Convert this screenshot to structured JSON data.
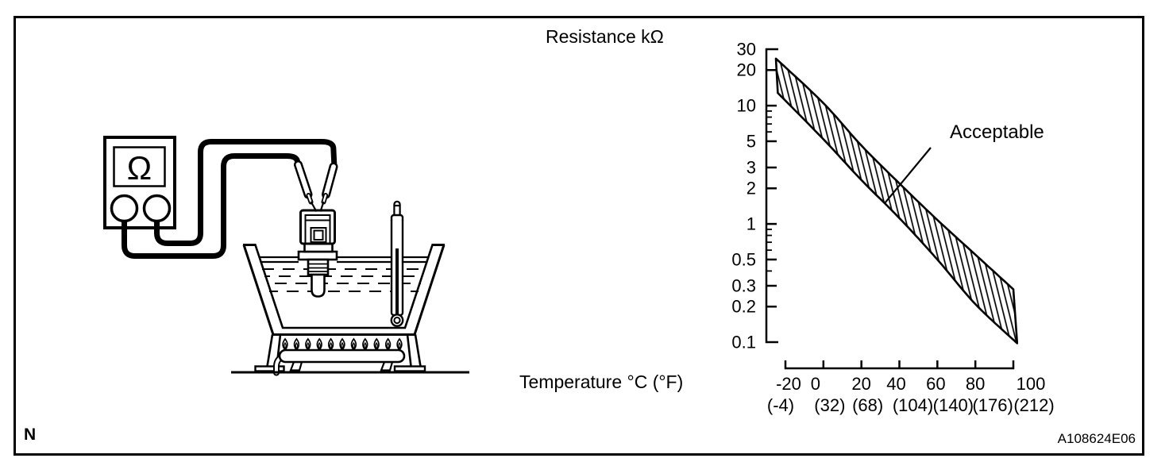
{
  "figure": {
    "frame_label": "N",
    "figure_code": "A108624E06"
  },
  "diagram": {
    "meter_symbol": "Ω"
  },
  "chart_data": {
    "type": "area",
    "subtype": "acceptable-band",
    "title": "Resistance kΩ",
    "xlabel": "Temperature °C (°F)",
    "ylabel": "Resistance kΩ",
    "x_scale": "linear",
    "y_scale": "log",
    "xlim": [
      -20,
      100
    ],
    "ylim": [
      0.1,
      30
    ],
    "grid": false,
    "legend": false,
    "band_label": "Acceptable",
    "x_ticks_celsius": [
      -20,
      0,
      20,
      40,
      60,
      80,
      100
    ],
    "x_tick_labels_celsius": [
      "-20",
      "0",
      "20",
      "40",
      "60",
      "80",
      "100"
    ],
    "x_tick_labels_fahrenheit": [
      "(-4)",
      "(32)",
      "(68)",
      "(104)",
      "(140)",
      "(176)",
      "(212)"
    ],
    "y_tick_labels": [
      "30",
      "20",
      "10",
      "5",
      "3",
      "2",
      "1",
      "0.5",
      "0.3",
      "0.2",
      "0.1"
    ],
    "y_minor_ticks": [
      9,
      8,
      7,
      6,
      0.9,
      0.8,
      0.7,
      0.6,
      0.4
    ],
    "series": [
      {
        "name": "acceptable_upper_kohm",
        "x": [
          -25,
          0,
          20,
          40,
          60,
          80,
          100
        ],
        "y": [
          25,
          10.5,
          4.6,
          2.2,
          1.08,
          0.55,
          0.28
        ]
      },
      {
        "name": "acceptable_lower_kohm",
        "x": [
          -24,
          0,
          20,
          40,
          60,
          80,
          102
        ],
        "y": [
          12.8,
          5.2,
          2.35,
          1.12,
          0.5,
          0.21,
          0.098
        ]
      }
    ]
  }
}
